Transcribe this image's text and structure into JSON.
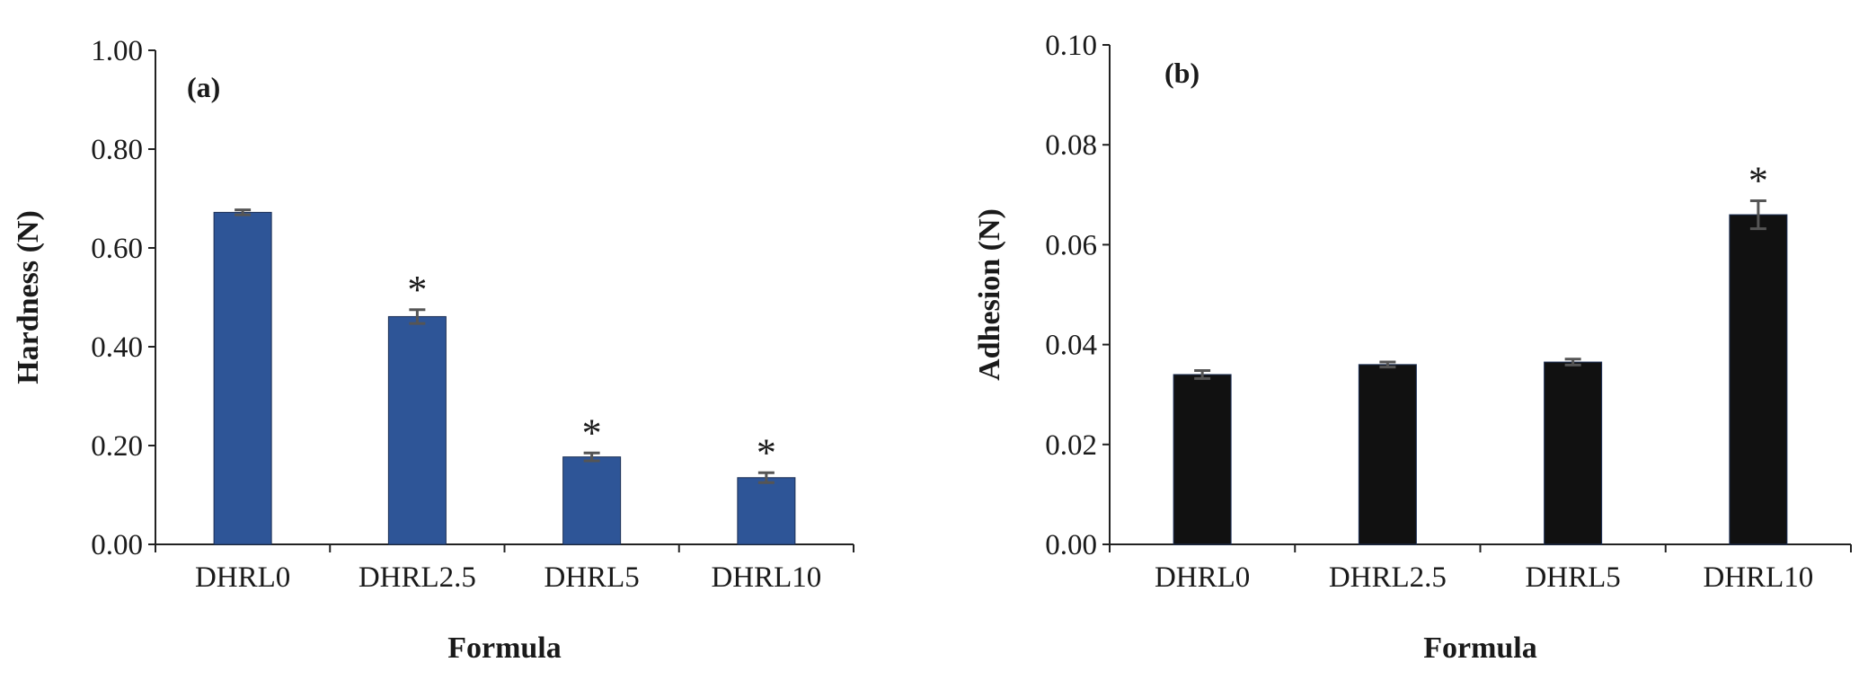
{
  "chart_data": [
    {
      "type": "bar",
      "panel_label": "(a)",
      "categories": [
        "DHRL0",
        "DHRL2.5",
        "DHRL5",
        "DHRL10"
      ],
      "values": [
        0.672,
        0.461,
        0.177,
        0.135
      ],
      "errors": [
        0.005,
        0.014,
        0.008,
        0.01
      ],
      "significance": [
        "",
        "*",
        "*",
        "*"
      ],
      "xlabel": "Formula",
      "ylabel": "Hardness (N)",
      "ylim": [
        0,
        1.0
      ],
      "yticks": [
        "0.00",
        "0.20",
        "0.40",
        "0.60",
        "0.80",
        "1.00"
      ],
      "grid": false,
      "bar_color": "#2e5597"
    },
    {
      "type": "bar",
      "panel_label": "(b)",
      "categories": [
        "DHRL0",
        "DHRL2.5",
        "DHRL5",
        "DHRL10"
      ],
      "values": [
        0.034,
        0.036,
        0.0365,
        0.066
      ],
      "errors": [
        0.0008,
        0.0005,
        0.0006,
        0.0028
      ],
      "significance": [
        "",
        "",
        "",
        "*"
      ],
      "xlabel": "Formula",
      "ylabel": "Adhesion (N)",
      "ylim": [
        0,
        0.1
      ],
      "yticks": [
        "0.00",
        "0.02",
        "0.04",
        "0.06",
        "0.08",
        "0.10"
      ],
      "grid": false,
      "bar_color": "#111111"
    }
  ]
}
